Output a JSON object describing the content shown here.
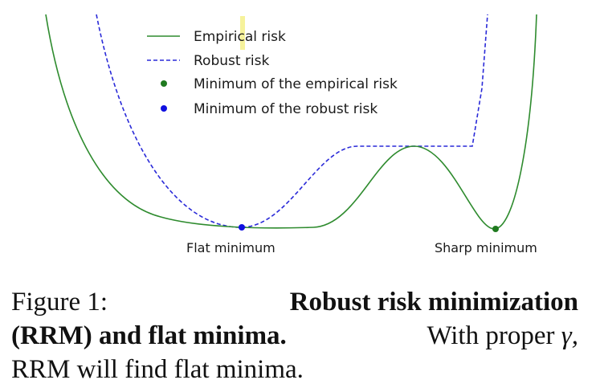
{
  "legend": {
    "empirical": "Empirical risk",
    "robust": "Robust risk",
    "min_empirical": "Minimum of the empirical risk",
    "min_robust": "Minimum of the robust risk"
  },
  "annotations": {
    "flat": "Flat minimum",
    "sharp": "Sharp minimum"
  },
  "caption": {
    "label": "Figure 1:",
    "title_part1": "Robust risk minimization",
    "title_part2": "(RRM) and flat minima.",
    "text_part1": "With proper",
    "gamma": "γ,",
    "text_part2": "RRM will find flat minima."
  },
  "colors": {
    "empirical": "#2e8b2e",
    "robust": "#2a2ad8",
    "min_empirical": "#1f7a1f",
    "min_robust": "#1010e0"
  }
}
